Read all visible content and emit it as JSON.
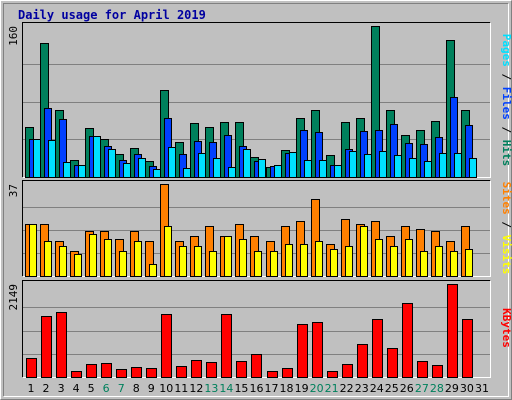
{
  "colors": {
    "background": "#c0c0c0",
    "hits": "#00805c",
    "files": "#0040ff",
    "pages": "#00e0ff",
    "visits": "#ffff00",
    "sites": "#ff8000",
    "kbytes": "#ff0000",
    "title": "#0000a0",
    "weekend": "#00805c"
  },
  "chart_data": [
    {
      "type": "bar",
      "title": "Daily usage for April 2019",
      "ylabel_parts": [
        "Pages",
        "Files",
        "Hits"
      ],
      "ymax_label": "160",
      "ylim": [
        0,
        160
      ],
      "grid": true,
      "categories": [
        "1",
        "2",
        "3",
        "4",
        "5",
        "6",
        "7",
        "8",
        "9",
        "10",
        "11",
        "12",
        "13",
        "14",
        "15",
        "16",
        "17",
        "18",
        "19",
        "20",
        "21",
        "22",
        "23",
        "24",
        "25",
        "26",
        "27",
        "28",
        "29",
        "30",
        "31"
      ],
      "weekend_categories": [
        "6",
        "7",
        "13",
        "14",
        "20",
        "21",
        "27",
        "28"
      ],
      "series": [
        {
          "name": "Hits",
          "values": [
            53,
            142,
            71,
            18,
            52,
            40,
            24,
            31,
            17,
            92,
            37,
            57,
            53,
            58,
            58,
            21,
            11,
            29,
            62,
            71,
            23,
            58,
            63,
            160,
            71,
            44,
            50,
            59,
            145,
            71,
            0
          ]
        },
        {
          "name": "Files",
          "values": [
            40,
            73,
            61,
            13,
            43,
            33,
            18,
            24,
            12,
            62,
            24,
            38,
            37,
            45,
            33,
            17,
            12,
            25,
            50,
            48,
            13,
            30,
            49,
            50,
            56,
            36,
            35,
            42,
            85,
            55,
            0
          ]
        },
        {
          "name": "Pages",
          "values": [
            40,
            39,
            16,
            13,
            43,
            30,
            15,
            20,
            9,
            32,
            10,
            25,
            20,
            11,
            30,
            19,
            13,
            26,
            18,
            18,
            13,
            28,
            24,
            28,
            23,
            20,
            17,
            25,
            25,
            20,
            0
          ]
        }
      ]
    },
    {
      "type": "bar",
      "ylabel_parts": [
        "Sites",
        "Visits"
      ],
      "ymax_label": "37",
      "ylim": [
        0,
        37
      ],
      "grid": true,
      "categories": [
        "1",
        "2",
        "3",
        "4",
        "5",
        "6",
        "7",
        "8",
        "9",
        "10",
        "11",
        "12",
        "13",
        "14",
        "15",
        "16",
        "17",
        "18",
        "19",
        "20",
        "21",
        "22",
        "23",
        "24",
        "25",
        "26",
        "27",
        "28",
        "29",
        "30",
        "31"
      ],
      "series": [
        {
          "name": "Visits",
          "values": [
            21,
            14,
            12,
            9,
            17,
            15,
            10,
            14,
            5,
            20,
            12,
            12,
            10,
            16,
            15,
            10,
            10,
            13,
            13,
            14,
            11,
            12,
            20,
            15,
            12,
            15,
            10,
            12,
            10,
            11,
            0
          ]
        },
        {
          "name": "Sites",
          "values": [
            21,
            21,
            14,
            10,
            18,
            18,
            15,
            18,
            14,
            37,
            14,
            16,
            20,
            16,
            21,
            16,
            14,
            20,
            22,
            31,
            13,
            23,
            21,
            22,
            16,
            20,
            19,
            18,
            14,
            20,
            0
          ]
        }
      ]
    },
    {
      "type": "bar",
      "ylabel_parts": [
        "KBytes"
      ],
      "ymax_label": "2149",
      "ylim": [
        0,
        2149
      ],
      "grid": true,
      "categories": [
        "1",
        "2",
        "3",
        "4",
        "5",
        "6",
        "7",
        "8",
        "9",
        "10",
        "11",
        "12",
        "13",
        "14",
        "15",
        "16",
        "17",
        "18",
        "19",
        "20",
        "21",
        "22",
        "23",
        "24",
        "25",
        "26",
        "27",
        "28",
        "29",
        "30",
        "31"
      ],
      "series": [
        {
          "name": "KBytes",
          "values": [
            440,
            1420,
            1500,
            130,
            310,
            330,
            190,
            230,
            210,
            1460,
            250,
            400,
            340,
            1460,
            380,
            520,
            140,
            210,
            1220,
            1260,
            140,
            290,
            760,
            1330,
            660,
            1720,
            360,
            270,
            2149,
            1330,
            0
          ]
        }
      ]
    }
  ]
}
